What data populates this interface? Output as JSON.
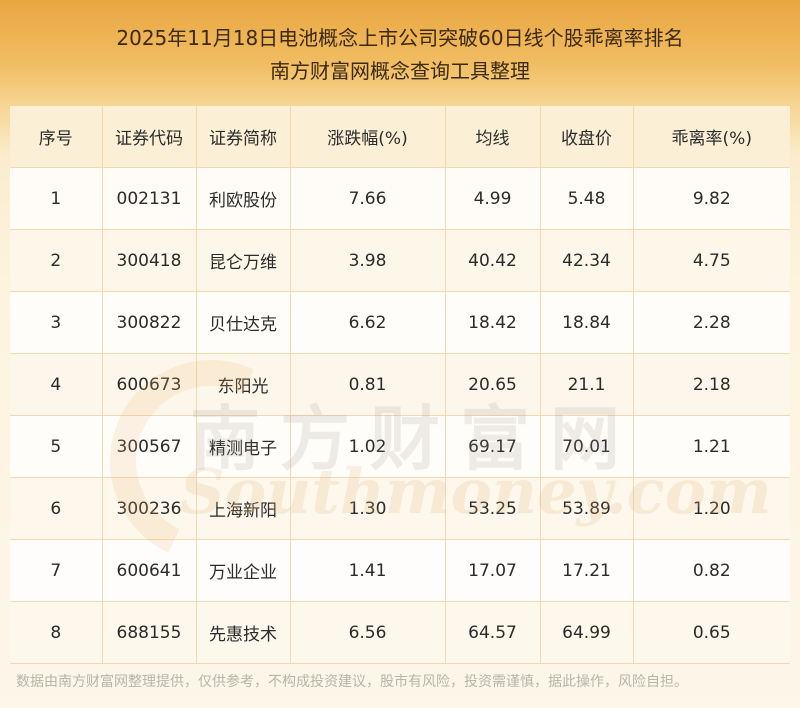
{
  "title": {
    "line1": "2025年11月18日电池概念上市公司突破60日线个股乖离率排名",
    "line2": "南方财富网概念查询工具整理"
  },
  "table": {
    "headers": [
      "序号",
      "证券代码",
      "证券简称",
      "涨跌幅(%)",
      "均线",
      "收盘价",
      "乖离率(%)"
    ],
    "rows": [
      [
        "1",
        "002131",
        "利欧股份",
        "7.66",
        "4.99",
        "5.48",
        "9.82"
      ],
      [
        "2",
        "300418",
        "昆仑万维",
        "3.98",
        "40.42",
        "42.34",
        "4.75"
      ],
      [
        "3",
        "300822",
        "贝仕达克",
        "6.62",
        "18.42",
        "18.84",
        "2.28"
      ],
      [
        "4",
        "600673",
        "东阳光",
        "0.81",
        "20.65",
        "21.1",
        "2.18"
      ],
      [
        "5",
        "300567",
        "精测电子",
        "1.02",
        "69.17",
        "70.01",
        "1.21"
      ],
      [
        "6",
        "300236",
        "上海新阳",
        "1.30",
        "53.25",
        "53.89",
        "1.20"
      ],
      [
        "7",
        "600641",
        "万业企业",
        "1.41",
        "17.07",
        "17.21",
        "0.82"
      ],
      [
        "8",
        "688155",
        "先惠技术",
        "6.56",
        "64.57",
        "64.99",
        "0.65"
      ]
    ]
  },
  "watermark": {
    "cn": "南方财富网",
    "en": "Southmoney.com"
  },
  "footer": "数据由南方财富网整理提供，仅供参考，不构成投资建议，股市有风险，投资需谨慎，据此操作，风险自担。"
}
